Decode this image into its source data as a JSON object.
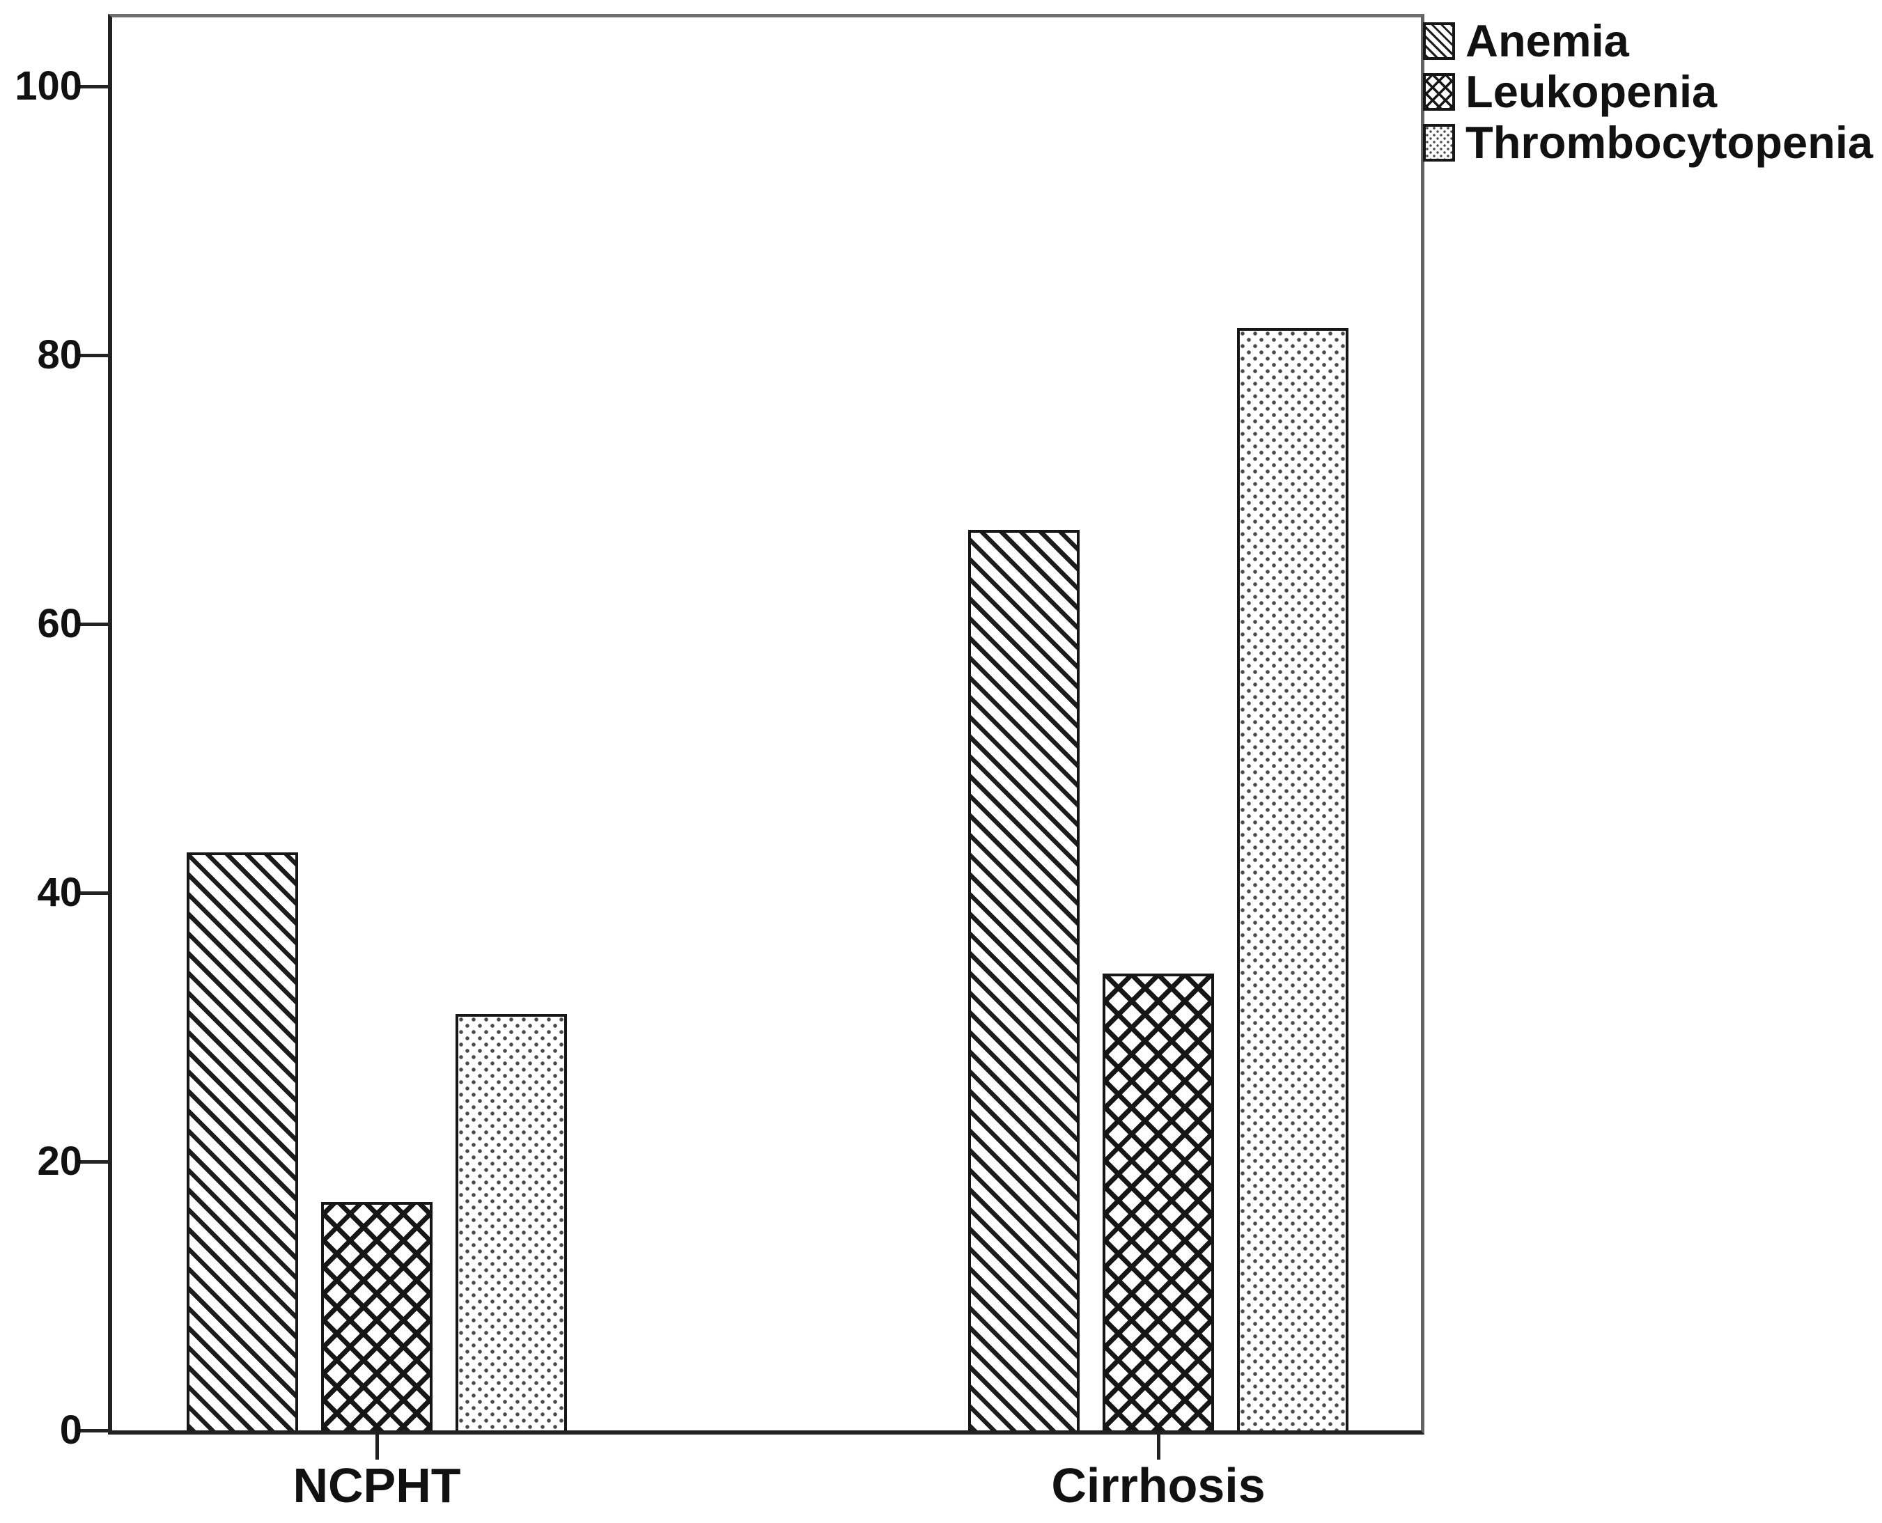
{
  "chart_data": {
    "type": "bar",
    "categories": [
      "NCPHT",
      "Cirrhosis"
    ],
    "series": [
      {
        "name": "Anemia",
        "pattern": "diagonal-hatch",
        "values": [
          43,
          67
        ]
      },
      {
        "name": "Leukopenia",
        "pattern": "crosshatch",
        "values": [
          17,
          34
        ]
      },
      {
        "name": "Thrombocytopenia",
        "pattern": "dots",
        "values": [
          31,
          82
        ]
      }
    ],
    "title": "",
    "xlabel": "",
    "ylabel": "",
    "ylim": [
      0,
      105
    ],
    "yticks": [
      0,
      20,
      40,
      60,
      80,
      100
    ],
    "grid": false,
    "legend_position": "top-right",
    "bar_fill": "#ffffff",
    "pattern_color": "#1a1a1a",
    "frame_color": "#6e6e6e",
    "axis_color": "#222222",
    "text_color": "#111111",
    "background": "#ffffff"
  }
}
